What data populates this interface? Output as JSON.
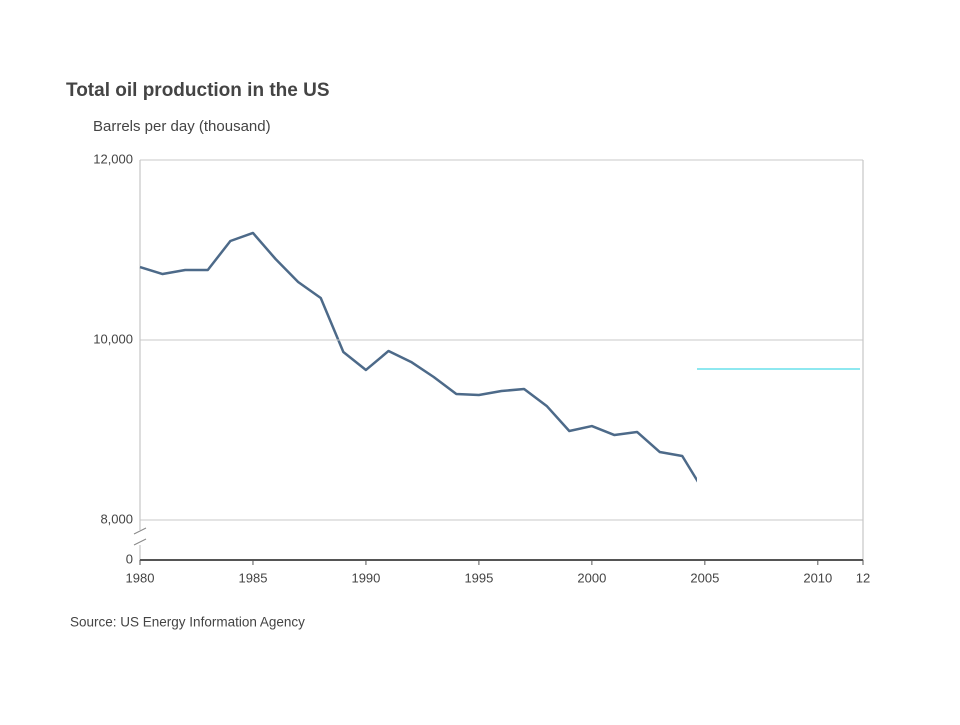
{
  "chart_data": {
    "type": "line",
    "title": "Total oil production in the US",
    "subtitle": "Barrels per day (thousand)",
    "source": "Source: US Energy Information Agency",
    "x": [
      1980,
      1981,
      1982,
      1983,
      1984,
      1985,
      1986,
      1987,
      1988,
      1989,
      1990,
      1991,
      1992,
      1993,
      1994,
      1995,
      1996,
      1997,
      1998,
      1999,
      2000,
      2001,
      2002,
      2003,
      2004,
      2005
    ],
    "series": [
      {
        "color": "#4d6a89",
        "values": [
          10811,
          10733,
          10778,
          10778,
          11100,
          11189,
          10900,
          10644,
          10467,
          9867,
          9667,
          9878,
          9756,
          9589,
          9400,
          9389,
          9433,
          9456,
          9267,
          8989,
          9044,
          8944,
          8978,
          8756,
          8711,
          8300
        ]
      }
    ],
    "xlim": [
      1980,
      2012
    ],
    "xticks": [
      1980,
      1985,
      1990,
      1995,
      2000,
      2005,
      2010,
      {
        "value": 2012,
        "label": "12"
      }
    ],
    "ylim": [
      8000,
      12000
    ],
    "yticks": [
      0,
      {
        "value": 8000,
        "label": "8,000"
      },
      {
        "value": 10000,
        "label": "10,000"
      },
      {
        "value": 12000,
        "label": "12,000"
      }
    ],
    "axis_break": true,
    "grid": true
  }
}
